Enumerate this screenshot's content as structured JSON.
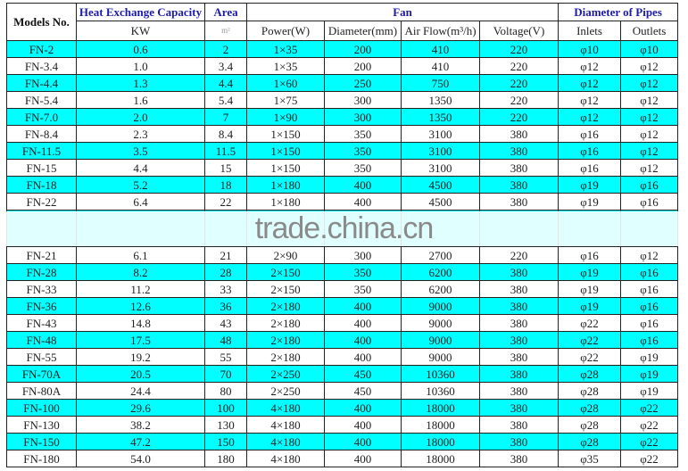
{
  "header": {
    "models": "Models No.",
    "capacity": "Heat Exchange Capacity",
    "area": "Area",
    "fan": "Fan",
    "pipes": "Diameter of Pipes",
    "kw": "KW",
    "area_unit": "m²",
    "power": "Power(W)",
    "diameter": "Diameter(mm)",
    "airflow": "Air Flow(m³/h)",
    "voltage": "Voltage(V)",
    "inlets": "Inlets",
    "outlets": "Outlets"
  },
  "row_color": "#00ffff",
  "rows": [
    [
      "FN-2",
      "0.6",
      "2",
      "1×35",
      "200",
      "410",
      "220",
      "φ10",
      "φ10"
    ],
    [
      "FN-3.4",
      "1.0",
      "3.4",
      "1×35",
      "200",
      "410",
      "220",
      "φ12",
      "φ12"
    ],
    [
      "FN-4.4",
      "1.3",
      "4.4",
      "1×60",
      "250",
      "750",
      "220",
      "φ12",
      "φ12"
    ],
    [
      "FN-5.4",
      "1.6",
      "5.4",
      "1×75",
      "300",
      "1350",
      "220",
      "φ12",
      "φ12"
    ],
    [
      "FN-7.0",
      "2.0",
      "7",
      "1×90",
      "300",
      "1350",
      "220",
      "φ12",
      "φ12"
    ],
    [
      "FN-8.4",
      "2.3",
      "8.4",
      "1×150",
      "350",
      "3100",
      "380",
      "φ16",
      "φ12"
    ],
    [
      "FN-11.5",
      "3.5",
      "11.5",
      "1×150",
      "350",
      "3100",
      "380",
      "φ16",
      "φ12"
    ],
    [
      "FN-15",
      "4.4",
      "15",
      "1×150",
      "350",
      "3100",
      "380",
      "φ16",
      "φ12"
    ],
    [
      "FN-18",
      "5.2",
      "18",
      "1×180",
      "400",
      "4500",
      "380",
      "φ19",
      "φ16"
    ],
    [
      "FN-22",
      "6.4",
      "22",
      "1×180",
      "400",
      "4500",
      "380",
      "φ19",
      "φ16"
    ],
    [
      "",
      "",
      "",
      "",
      "",
      "",
      "",
      "",
      ""
    ],
    [
      "FN-21",
      "6.1",
      "21",
      "2×90",
      "300",
      "2700",
      "220",
      "φ16",
      "φ12"
    ],
    [
      "FN-28",
      "8.2",
      "28",
      "2×150",
      "350",
      "6200",
      "380",
      "φ19",
      "φ16"
    ],
    [
      "FN-33",
      "11.2",
      "33",
      "2×150",
      "350",
      "6200",
      "380",
      "φ19",
      "φ16"
    ],
    [
      "FN-36",
      "12.6",
      "36",
      "2×180",
      "400",
      "9000",
      "380",
      "φ19",
      "φ16"
    ],
    [
      "FN-43",
      "14.8",
      "43",
      "2×180",
      "400",
      "9000",
      "380",
      "φ22",
      "φ16"
    ],
    [
      "FN-48",
      "17.5",
      "48",
      "2×180",
      "400",
      "9000",
      "380",
      "φ22",
      "φ16"
    ],
    [
      "FN-55",
      "19.2",
      "55",
      "2×180",
      "400",
      "9000",
      "380",
      "φ22",
      "φ19"
    ],
    [
      "FN-70A",
      "20.5",
      "70",
      "2×250",
      "450",
      "10360",
      "380",
      "φ28",
      "φ19"
    ],
    [
      "FN-80A",
      "24.4",
      "80",
      "2×250",
      "450",
      "10360",
      "380",
      "φ28",
      "φ19"
    ],
    [
      "FN-100",
      "29.6",
      "100",
      "4×180",
      "400",
      "18000",
      "380",
      "φ28",
      "φ22"
    ],
    [
      "FN-130",
      "38.2",
      "130",
      "4×180",
      "400",
      "18000",
      "380",
      "φ28",
      "φ22"
    ],
    [
      "FN-150",
      "47.2",
      "150",
      "4×180",
      "400",
      "18000",
      "380",
      "φ28",
      "φ22"
    ],
    [
      "FN-180",
      "54.0",
      "180",
      "4×180",
      "400",
      "18000",
      "380",
      "φ35",
      "φ22"
    ]
  ],
  "watermark": "trade.china.cn"
}
